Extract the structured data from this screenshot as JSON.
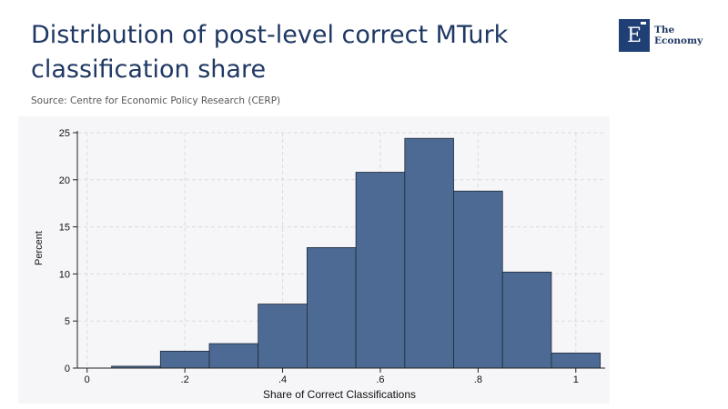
{
  "header": {
    "title": "Distribution of post-level correct MTurk classification share",
    "source": "Source: Centre for Economic Policy Research (CERP)"
  },
  "logo": {
    "letter": "E",
    "line1": "The",
    "line2": "Economy",
    "color": "#1f3f75"
  },
  "chart_data": {
    "type": "bar",
    "title": "",
    "xlabel": "Share of Correct Classifications",
    "ylabel": "Percent",
    "bins": [
      {
        "x0": 0.05,
        "x1": 0.15,
        "value": 0.2
      },
      {
        "x0": 0.15,
        "x1": 0.25,
        "value": 1.8
      },
      {
        "x0": 0.25,
        "x1": 0.35,
        "value": 2.6
      },
      {
        "x0": 0.35,
        "x1": 0.45,
        "value": 6.8
      },
      {
        "x0": 0.45,
        "x1": 0.55,
        "value": 12.8
      },
      {
        "x0": 0.55,
        "x1": 0.65,
        "value": 20.8
      },
      {
        "x0": 0.65,
        "x1": 0.75,
        "value": 24.4
      },
      {
        "x0": 0.75,
        "x1": 0.85,
        "value": 18.8
      },
      {
        "x0": 0.85,
        "x1": 0.95,
        "value": 10.2
      },
      {
        "x0": 0.95,
        "x1": 1.05,
        "value": 1.6
      }
    ],
    "xlim": [
      -0.02,
      1.06
    ],
    "ylim": [
      0,
      25
    ],
    "xticks": [
      0,
      0.2,
      0.4,
      0.6,
      0.8,
      1
    ],
    "xtick_labels": [
      "0",
      ".2",
      ".4",
      ".6",
      ".8",
      "1"
    ],
    "yticks": [
      0,
      5,
      10,
      15,
      20,
      25
    ],
    "ytick_labels": [
      "0",
      "5",
      "10",
      "15",
      "20",
      "25"
    ],
    "grid": true,
    "bar_color": "#4c6a94",
    "bar_edge_color": "#1e2a3a"
  }
}
